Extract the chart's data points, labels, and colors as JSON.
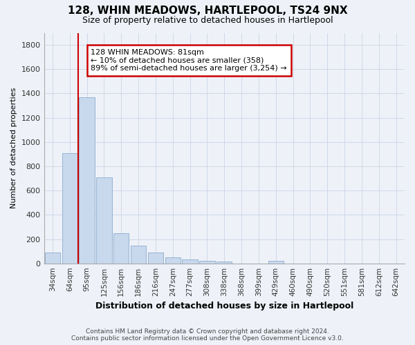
{
  "title": "128, WHIN MEADOWS, HARTLEPOOL, TS24 9NX",
  "subtitle": "Size of property relative to detached houses in Hartlepool",
  "xlabel": "Distribution of detached houses by size in Hartlepool",
  "ylabel": "Number of detached properties",
  "categories": [
    "34sqm",
    "64sqm",
    "95sqm",
    "125sqm",
    "156sqm",
    "186sqm",
    "216sqm",
    "247sqm",
    "277sqm",
    "308sqm",
    "338sqm",
    "368sqm",
    "399sqm",
    "429sqm",
    "460sqm",
    "490sqm",
    "520sqm",
    "551sqm",
    "581sqm",
    "612sqm",
    "642sqm"
  ],
  "values": [
    88,
    910,
    1370,
    710,
    248,
    145,
    88,
    52,
    30,
    22,
    18,
    0,
    0,
    20,
    0,
    0,
    0,
    0,
    0,
    0,
    0
  ],
  "bar_color": "#c8d8ed",
  "bar_edge_color": "#8aabcc",
  "grid_color": "#d0d8e8",
  "vline_x": 1.5,
  "vline_color": "#cc0000",
  "annotation_text": "128 WHIN MEADOWS: 81sqm\n← 10% of detached houses are smaller (358)\n89% of semi-detached houses are larger (3,254) →",
  "annotation_box_color": "#ffffff",
  "annotation_box_edge_color": "#cc0000",
  "ylim": [
    0,
    1900
  ],
  "yticks": [
    0,
    200,
    400,
    600,
    800,
    1000,
    1200,
    1400,
    1600,
    1800
  ],
  "footer_line1": "Contains HM Land Registry data © Crown copyright and database right 2024.",
  "footer_line2": "Contains public sector information licensed under the Open Government Licence v3.0.",
  "background_color": "#eef2f8"
}
